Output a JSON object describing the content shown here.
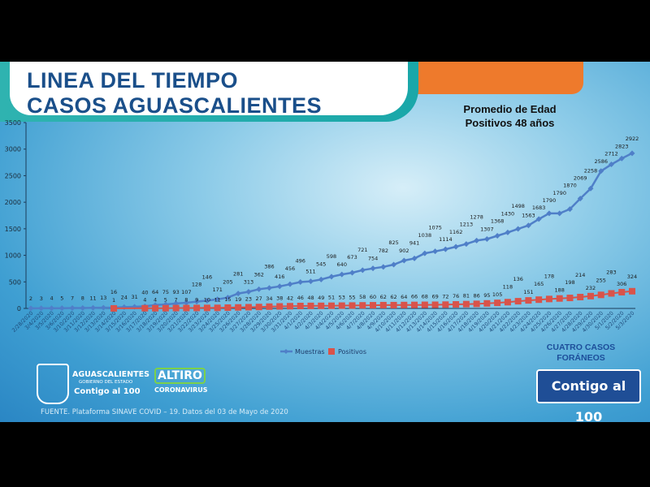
{
  "header": {
    "title_line1": "LINEA DEL TIEMPO",
    "title_line2": "CASOS AGUASCALIENTES"
  },
  "note": {
    "line1": "Promedio de Edad",
    "line2": "Positivos 48 años"
  },
  "annotation": {
    "line1": "CUATRO CASOS",
    "line2": "FORÁNEOS"
  },
  "footer": {
    "source": "FUENTE. Plataforma SINAVE COVID – 19. Datos del 03 de Mayo de 2020",
    "logo_state": {
      "name": "AGUASCALIENTES",
      "sub": "GOBIERNO DEL ESTADO",
      "slogan": "Contigo al 100"
    },
    "logo_campaign": {
      "line1": "ALTIRO",
      "line2": "CORONAVIRUS"
    },
    "logo_contigo": "Contigo al 100"
  },
  "colors": {
    "muestras": "#4f7fc8",
    "positivos": "#d9534a",
    "title": "#1a4f8a",
    "banner": "#1fabab",
    "accent": "#ee7a2c"
  },
  "chart_data": {
    "type": "line",
    "ylim": [
      0,
      3500
    ],
    "yticks": [
      0,
      500,
      1000,
      1500,
      2000,
      2500,
      3000,
      3500
    ],
    "grid": false,
    "legend": "bottom",
    "categories": [
      "2/28/2020",
      "3/4/2020",
      "3/5/2020",
      "3/6/2020",
      "3/10/2020",
      "3/11/2020",
      "3/12/2020",
      "3/13/2020",
      "3/14/2020",
      "3/15/2020",
      "3/16/2020",
      "3/17/2020",
      "3/18/2020",
      "3/19/2020",
      "3/20/2020",
      "3/21/2020",
      "3/22/2020",
      "3/23/2020",
      "3/24/2020",
      "3/25/2020",
      "3/26/2020",
      "3/27/2020",
      "3/28/2020",
      "3/29/2020",
      "3/30/2020",
      "3/31/2020",
      "4/1/2020",
      "4/2/2020",
      "4/3/2020",
      "4/4/2020",
      "4/5/2020",
      "4/6/2020",
      "4/7/2020",
      "4/8/2020",
      "4/9/2020",
      "4/10/2020",
      "4/11/2020",
      "4/12/2020",
      "4/13/2020",
      "4/14/2020",
      "4/15/2020",
      "4/16/2020",
      "4/17/2020",
      "4/18/2020",
      "4/19/2020",
      "4/20/2020",
      "4/21/2020",
      "4/22/2020",
      "4/23/2020",
      "4/24/2020",
      "4/25/2020",
      "4/26/2020",
      "4/27/2020",
      "4/28/2020",
      "4/29/2020",
      "4/30/2020",
      "5/1/2020",
      "5/2/2020",
      "5/3/2020"
    ],
    "series": [
      {
        "name": "Muestras",
        "values": [
          2,
          3,
          4,
          5,
          7,
          8,
          11,
          13,
          16,
          24,
          31,
          40,
          64,
          75,
          93,
          107,
          128,
          146,
          171,
          205,
          281,
          313,
          362,
          386,
          416,
          456,
          496,
          511,
          545,
          598,
          640,
          673,
          721,
          754,
          782,
          825,
          902,
          941,
          1038,
          1075,
          1114,
          1162,
          1213,
          1278,
          1307,
          1368,
          1430,
          1498,
          1563,
          1683,
          1790,
          1790,
          1870,
          2069,
          2258,
          2586,
          2712,
          2823,
          2922
        ]
      },
      {
        "name": "Positivos",
        "values": [
          null,
          null,
          null,
          null,
          null,
          null,
          null,
          null,
          1,
          null,
          null,
          4,
          4,
          5,
          7,
          8,
          9,
          10,
          11,
          15,
          19,
          23,
          27,
          34,
          38,
          42,
          46,
          48,
          49,
          51,
          53,
          55,
          58,
          60,
          62,
          62,
          64,
          66,
          68,
          69,
          72,
          76,
          81,
          86,
          95,
          105,
          118,
          136,
          151,
          165,
          178,
          188,
          198,
          214,
          232,
          255,
          283,
          306,
          324
        ]
      }
    ]
  }
}
